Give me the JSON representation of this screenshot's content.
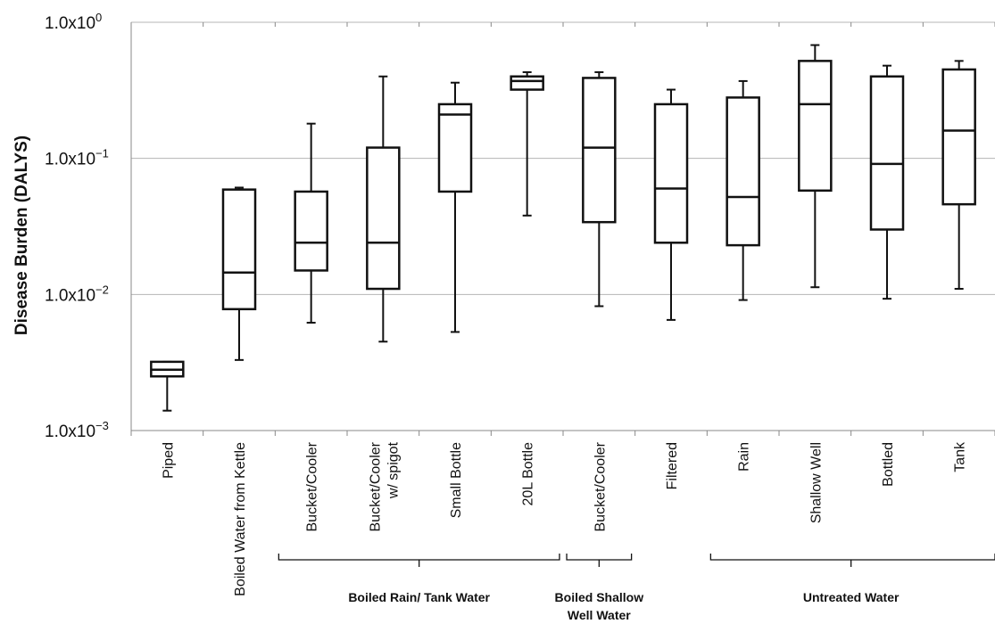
{
  "chart_data": {
    "type": "box",
    "ylabel": "Disease Burden (DALYS)",
    "yscale": "log",
    "ylim": [
      0.001,
      1.0
    ],
    "yticks": [
      {
        "value": 1.0,
        "mant": "1.0x10",
        "exp": "0"
      },
      {
        "value": 0.1,
        "mant": "1.0x10",
        "exp": "−1"
      },
      {
        "value": 0.01,
        "mant": "1.0x10",
        "exp": "−2"
      },
      {
        "value": 0.001,
        "mant": "1.0x10",
        "exp": "−3"
      }
    ],
    "grid": "horizontal",
    "categories": [
      "Piped",
      "Boiled Water from Kettle",
      "Bucket/Cooler",
      "Bucket/Cooler w/ spigot",
      "Small Bottle",
      "20L Bottle",
      "Bucket/Cooler",
      "Filtered",
      "Rain",
      "Shallow Well",
      "Bottled",
      "Tank"
    ],
    "category_lines": [
      [
        "Piped"
      ],
      [
        "Boiled Water from Kettle"
      ],
      [
        "Bucket/Cooler"
      ],
      [
        "Bucket/Cooler",
        "w/ spigot"
      ],
      [
        "Small Bottle"
      ],
      [
        "20L Bottle"
      ],
      [
        "Bucket/Cooler"
      ],
      [
        "Filtered"
      ],
      [
        "Rain"
      ],
      [
        "Shallow Well"
      ],
      [
        "Bottled"
      ],
      [
        "Tank"
      ]
    ],
    "boxes": [
      {
        "min": 0.0014,
        "q1": 0.0025,
        "median": 0.0028,
        "q3": 0.0032,
        "max": 0.0032
      },
      {
        "min": 0.0033,
        "q1": 0.0078,
        "median": 0.0145,
        "q3": 0.059,
        "max": 0.061
      },
      {
        "min": 0.0062,
        "q1": 0.015,
        "median": 0.024,
        "q3": 0.057,
        "max": 0.18
      },
      {
        "min": 0.0045,
        "q1": 0.011,
        "median": 0.024,
        "q3": 0.12,
        "max": 0.4
      },
      {
        "min": 0.0053,
        "q1": 0.057,
        "median": 0.21,
        "q3": 0.25,
        "max": 0.36
      },
      {
        "min": 0.038,
        "q1": 0.32,
        "median": 0.37,
        "q3": 0.4,
        "max": 0.43
      },
      {
        "min": 0.0082,
        "q1": 0.034,
        "median": 0.12,
        "q3": 0.39,
        "max": 0.43
      },
      {
        "min": 0.0065,
        "q1": 0.024,
        "median": 0.06,
        "q3": 0.25,
        "max": 0.32
      },
      {
        "min": 0.0091,
        "q1": 0.023,
        "median": 0.052,
        "q3": 0.28,
        "max": 0.37
      },
      {
        "min": 0.0113,
        "q1": 0.058,
        "median": 0.25,
        "q3": 0.52,
        "max": 0.68
      },
      {
        "min": 0.0093,
        "q1": 0.03,
        "median": 0.091,
        "q3": 0.4,
        "max": 0.48
      },
      {
        "min": 0.011,
        "q1": 0.046,
        "median": 0.16,
        "q3": 0.45,
        "max": 0.52
      }
    ],
    "groups": [
      {
        "label_lines": [
          "Boiled Rain/ Tank Water"
        ],
        "from": 2,
        "to": 5
      },
      {
        "label_lines": [
          "Boiled Shallow",
          "Well Water"
        ],
        "from": 6,
        "to": 6
      },
      {
        "label_lines": [
          "Untreated Water"
        ],
        "from": 8,
        "to": 11
      }
    ]
  }
}
